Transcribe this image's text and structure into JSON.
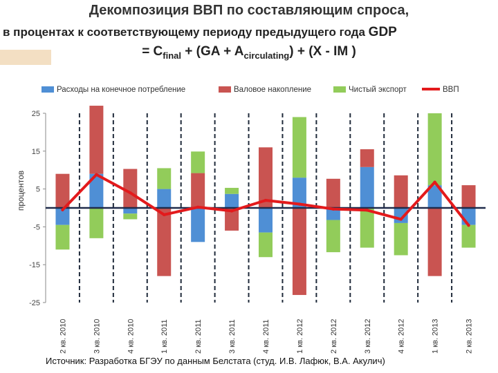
{
  "title_line1": "Декомпозиция ВВП по составляющим спроса,",
  "title_line2": "в процентах к соответствующему периоду предыдущего года",
  "title_line2_gdp": "GDP",
  "formula": {
    "p1": "= C",
    "sub1": "final",
    "p2": " + (GA + A",
    "sub2": "circulating",
    "p3": ") + (X - IM )"
  },
  "source": "Источник: Разработка БГЭУ по данным Белстата (студ. И.В. Лафюк, В.А. Акулич)",
  "chart_data": {
    "type": "bar",
    "stacked": true,
    "ylabel": "процентов",
    "ylim": [
      -25,
      25
    ],
    "yticks": [
      25,
      15,
      5,
      -5,
      -15,
      -25
    ],
    "legend_position": "top",
    "categories": [
      "2 кв. 2010",
      "3 кв. 2010",
      "4 кв. 2010",
      "1 кв. 2011",
      "2 кв. 2011",
      "3 кв. 2011",
      "4 кв. 2011",
      "1 кв. 2012",
      "2 кв. 2012",
      "3 кв. 2012",
      "4 кв. 2012",
      "1 кв. 2013",
      "2 кв. 2013"
    ],
    "series": [
      {
        "name": "Расходы на конечное потребление",
        "type": "bar",
        "color": "#4f8fd5",
        "values": [
          -4.5,
          9.0,
          -1.5,
          5.0,
          -9.0,
          3.7,
          -6.5,
          8.0,
          -3.2,
          10.8,
          -4.0,
          6.0,
          -4.5
        ]
      },
      {
        "name": "Валовое накопление",
        "type": "bar",
        "color": "#c95451",
        "values": [
          9.0,
          18.0,
          10.3,
          -18.0,
          9.2,
          -6.0,
          16.0,
          -23.0,
          7.7,
          4.7,
          8.6,
          -18.0,
          6.0
        ]
      },
      {
        "name": "Чистый экспорт",
        "type": "bar",
        "color": "#92cc5a",
        "values": [
          -6.5,
          -8.0,
          -1.5,
          5.5,
          5.7,
          1.6,
          -6.5,
          16.0,
          -8.5,
          -10.5,
          -8.5,
          19.0,
          -6.0
        ]
      },
      {
        "name": "ВВП",
        "type": "line",
        "color": "#e31a1c",
        "values": [
          -0.5,
          8.8,
          4.0,
          -1.8,
          0.2,
          -0.8,
          2.0,
          1.0,
          -0.3,
          -0.6,
          -3.0,
          6.8,
          -4.6
        ]
      }
    ]
  }
}
